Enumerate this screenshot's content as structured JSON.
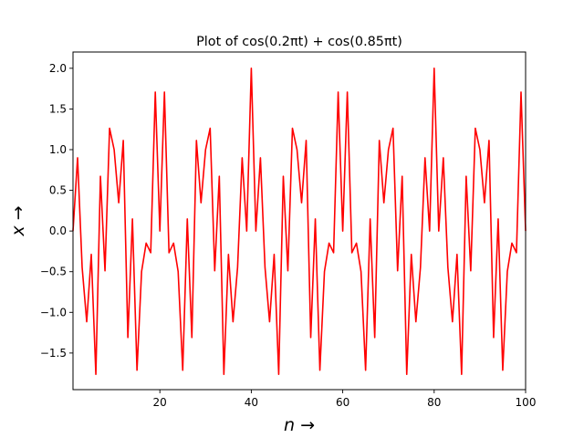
{
  "chart_data": {
    "type": "line",
    "title": "Plot of cos(0.2πt) + cos(0.85πt)",
    "xlabel": "n →",
    "ylabel": "x →",
    "xlim": [
      1,
      100
    ],
    "ylim": [
      -1.95,
      2.2
    ],
    "x_ticks": [
      20,
      40,
      60,
      80,
      100
    ],
    "y_ticks": [
      -1.5,
      -1.0,
      -0.5,
      0.0,
      0.5,
      1.0,
      1.5,
      2.0
    ],
    "x_tick_labels": [
      "20",
      "40",
      "60",
      "80",
      "100"
    ],
    "y_tick_labels": [
      "−1.5",
      "−1.0",
      "−0.5",
      "0.0",
      "0.5",
      "1.0",
      "1.5",
      "2.0"
    ],
    "grid": false,
    "series": [
      {
        "color": "#ff0000",
        "x_start": 1,
        "x_end": 100,
        "values": [
          0.0,
          0.8995,
          -0.4477,
          -1.1158,
          -0.2879,
          -1.7616,
          0.6729,
          -0.4889,
          1.2629,
          1.0,
          0.3473,
          1.1124,
          -1.309,
          0.1482,
          -1.7117,
          -0.4995,
          -0.1494,
          -0.2668,
          1.7071,
          0.0,
          1.7071,
          -0.2668,
          -0.1494,
          -0.4995,
          -1.7117,
          0.1482,
          -1.309,
          1.1124,
          0.3473,
          1.0,
          1.2629,
          -0.4889,
          0.6729,
          -1.7616,
          -0.2879,
          -1.1158,
          -0.4477,
          0.8995,
          0.0,
          2.0,
          -0.0,
          0.8995,
          -0.4477,
          -1.1158,
          -0.2879,
          -1.7616,
          0.6729,
          -0.4889,
          1.2629,
          1.0,
          0.3473,
          1.1124,
          -1.309,
          0.1482,
          -1.7117,
          -0.4995,
          -0.1494,
          -0.2668,
          1.7071,
          0.0,
          1.7071,
          -0.2668,
          -0.1494,
          -0.4995,
          -1.7117,
          0.1482,
          -1.309,
          1.1124,
          0.3473,
          1.0,
          1.2629,
          -0.4889,
          0.6729,
          -1.7616,
          -0.2879,
          -1.1158,
          -0.4477,
          0.8995,
          0.0,
          2.0,
          0.0,
          0.8995,
          -0.4477,
          -1.1158,
          -0.2879,
          -1.7616,
          0.6729,
          -0.4889,
          1.2629,
          1.0,
          0.3473,
          1.1124,
          -1.309,
          0.1482,
          -1.7117,
          -0.4995,
          -0.1494,
          -0.2668,
          1.7071,
          0.0
        ]
      }
    ]
  }
}
